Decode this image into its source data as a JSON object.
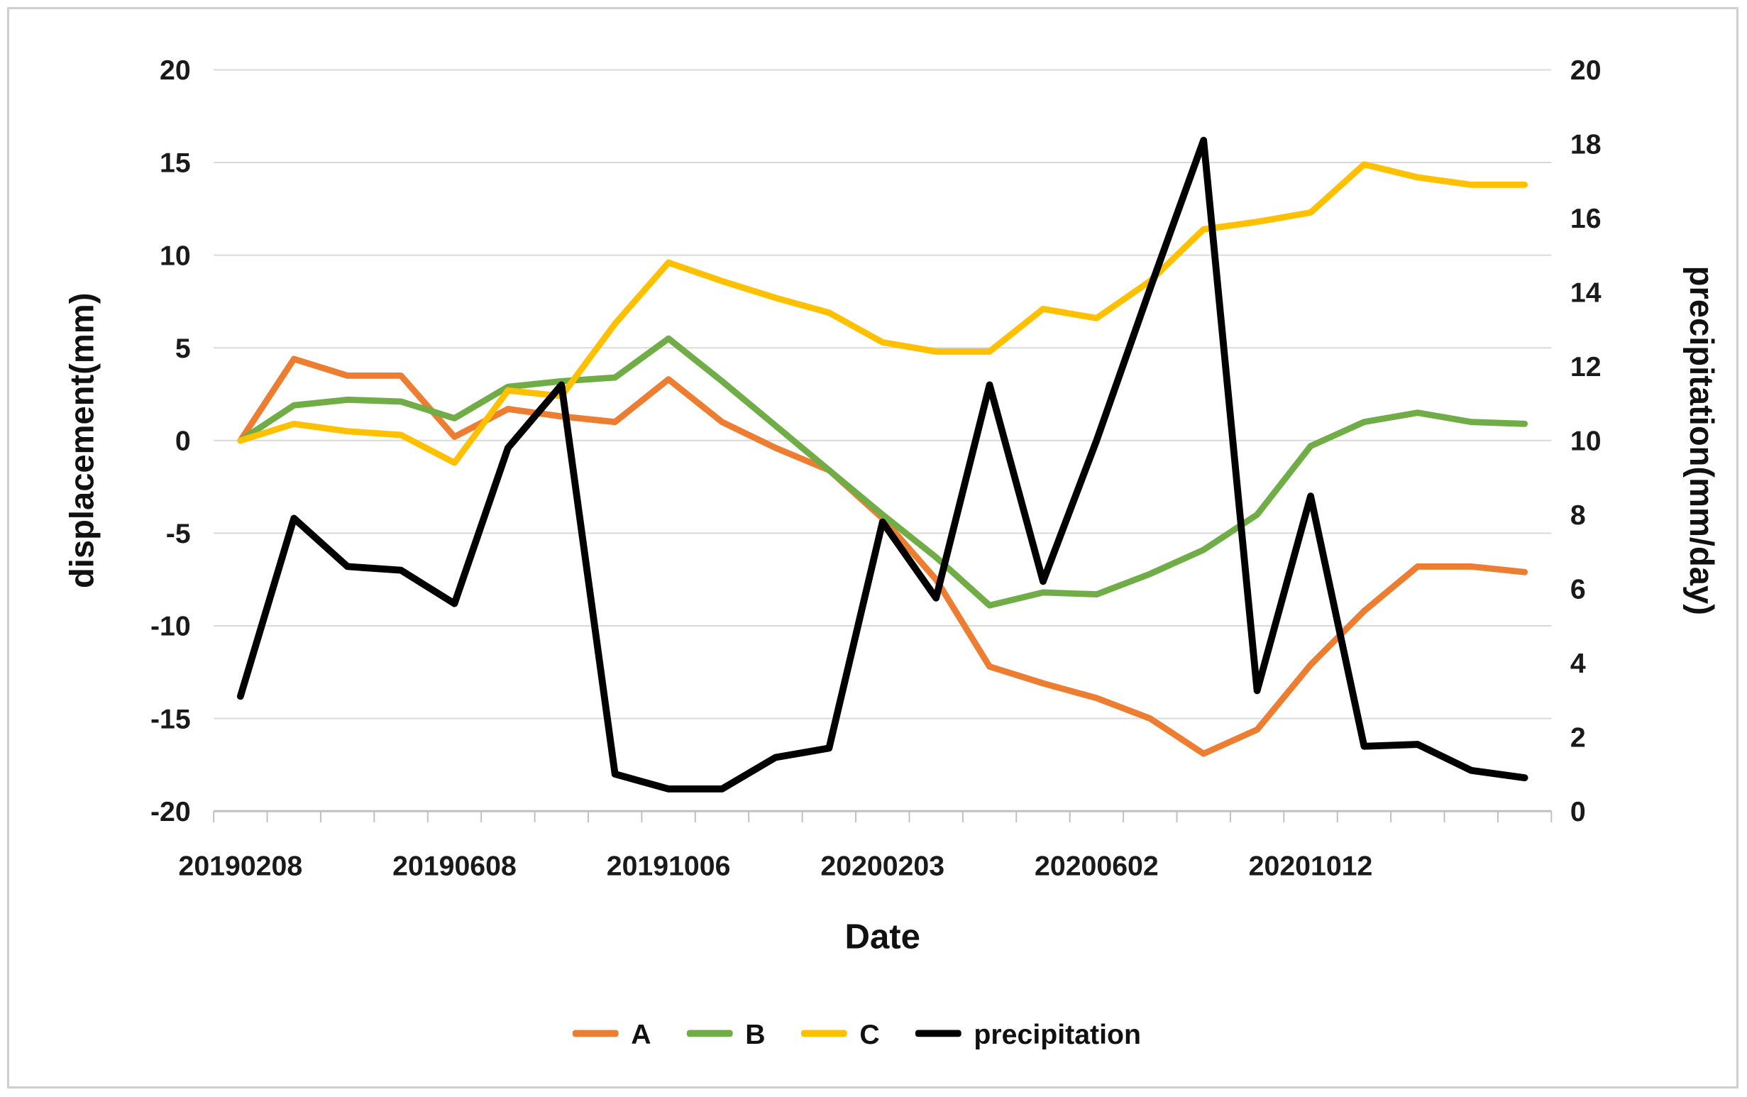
{
  "chart_data": {
    "type": "line",
    "title": "",
    "xlabel": "Date",
    "ylabel_left": "displacement(mm)",
    "ylabel_right": "precipitation(mm/day)",
    "n_points": 25,
    "x_tick_positions": [
      0,
      4,
      8,
      12,
      16,
      20
    ],
    "x_tick_labels": [
      "20190208",
      "20190608",
      "20191006",
      "20200203",
      "20200602",
      "20201012"
    ],
    "left_axis": {
      "min": -20,
      "max": 20,
      "ticks": [
        20,
        15,
        10,
        5,
        0,
        -5,
        -10,
        -15,
        -20
      ]
    },
    "right_axis": {
      "min": 0,
      "max": 20,
      "ticks": [
        20,
        18,
        16,
        14,
        12,
        10,
        8,
        6,
        4,
        2,
        0
      ]
    },
    "grid_color": "#d9d9d9",
    "axis_line_color": "#bfbfbf",
    "series": [
      {
        "name": "A",
        "color": "#ED7D31",
        "axis": "left",
        "values": [
          0,
          4.4,
          3.5,
          3.5,
          0.2,
          1.7,
          1.3,
          1.0,
          3.3,
          1.0,
          -0.4,
          -1.6,
          -4.2,
          -7.5,
          -12.2,
          -13.1,
          -13.9,
          -15.0,
          -16.9,
          -15.6,
          -12.1,
          -9.2,
          -6.8,
          -6.8,
          -7.1
        ]
      },
      {
        "name": "B",
        "color": "#70AD47",
        "axis": "left",
        "values": [
          0,
          1.9,
          2.2,
          2.1,
          1.2,
          2.9,
          3.2,
          3.4,
          5.5,
          3.2,
          0.8,
          -1.6,
          -4.0,
          -6.3,
          -8.9,
          -8.2,
          -8.3,
          -7.2,
          -5.9,
          -4.0,
          -0.3,
          1.0,
          1.5,
          1.0,
          0.9
        ]
      },
      {
        "name": "C",
        "color": "#FFC000",
        "axis": "left",
        "values": [
          0,
          0.9,
          0.5,
          0.3,
          -1.2,
          2.7,
          2.4,
          6.3,
          9.6,
          8.6,
          7.7,
          6.9,
          5.3,
          4.8,
          4.8,
          7.1,
          6.6,
          8.6,
          11.4,
          11.8,
          12.3,
          14.9,
          14.2,
          13.8,
          13.8
        ]
      },
      {
        "name": "precipitation",
        "color": "#000000",
        "axis": "right",
        "values": [
          3.1,
          7.9,
          6.6,
          6.5,
          5.6,
          9.8,
          11.5,
          1.0,
          0.6,
          0.6,
          1.45,
          1.7,
          7.8,
          5.75,
          11.5,
          6.2,
          10.0,
          14.1,
          18.1,
          3.25,
          8.5,
          1.75,
          1.8,
          1.1,
          0.9
        ]
      }
    ],
    "legend": [
      "A",
      "B",
      "C",
      "precipitation"
    ]
  }
}
